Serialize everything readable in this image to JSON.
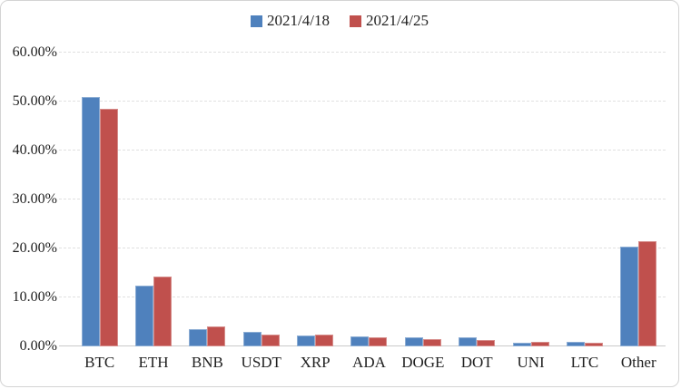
{
  "chart_data": {
    "type": "bar",
    "title": "",
    "categories": [
      "BTC",
      "ETH",
      "BNB",
      "USDT",
      "XRP",
      "ADA",
      "DOGE",
      "DOT",
      "UNI",
      "LTC",
      "Other"
    ],
    "series": [
      {
        "name": "2021/4/18",
        "color": "#4f81bd",
        "values": [
          50.9,
          12.4,
          3.5,
          3.0,
          2.2,
          2.0,
          1.9,
          1.8,
          0.8,
          0.9,
          20.3
        ]
      },
      {
        "name": "2021/4/25",
        "color": "#c0504d",
        "values": [
          48.5,
          14.2,
          4.1,
          2.5,
          2.4,
          1.8,
          1.5,
          1.3,
          0.9,
          0.7,
          21.5
        ]
      }
    ],
    "xlabel": "",
    "ylabel": "",
    "ylim": [
      0,
      60
    ],
    "yticks": [
      "0.00%",
      "10.00%",
      "20.00%",
      "30.00%",
      "40.00%",
      "50.00%",
      "60.00%"
    ],
    "grid": true,
    "legend_position": "top"
  }
}
